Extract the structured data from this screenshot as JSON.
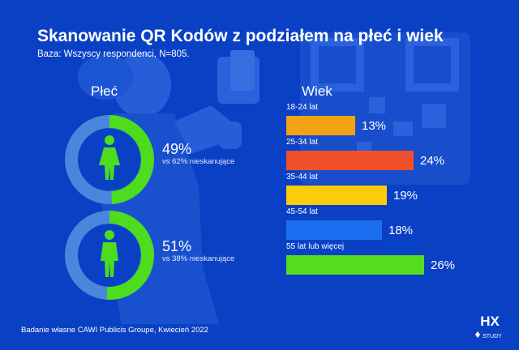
{
  "title": "Skanowanie QR Kodów z podziałem na płeć i wiek",
  "subtitle": "Baza: Wszyscy respondenci, N=805.",
  "gender": {
    "heading": "Płeć",
    "female": {
      "pct_text": "49%",
      "vs_text": "vs 62% nieskanujące",
      "value": 49,
      "icon": "female-icon"
    },
    "male": {
      "pct_text": "51%",
      "vs_text": "vs 38% nieskanujące",
      "value": 51,
      "icon": "male-icon"
    },
    "colors": {
      "fill": "#4ddc1e",
      "track": "#4a86dc"
    }
  },
  "age": {
    "heading": "Wiek",
    "rows": [
      {
        "label": "18-24 lat",
        "value_text": "13%",
        "value": 13,
        "color": "#f2a314"
      },
      {
        "label": "25-34 lat",
        "value_text": "24%",
        "value": 24,
        "color": "#f2502a"
      },
      {
        "label": "35-44 lat",
        "value_text": "19%",
        "value": 19,
        "color": "#fccb0a"
      },
      {
        "label": "45-54 lat",
        "value_text": "18%",
        "value": 18,
        "color": "#1c6ef0"
      },
      {
        "label": "55 lat lub więcej",
        "value_text": "26%",
        "value": 26,
        "color": "#55dc1e"
      }
    ]
  },
  "source": "Badanie własne CAWI Publicis Groupe, Kwiecień 2022",
  "logo": {
    "text": "HX",
    "subtext": "STUDY"
  },
  "chart_data": [
    {
      "type": "pie",
      "labels": [
        "female"
      ],
      "values": [
        49
      ],
      "annotations": [
        "vs 62% nieskanujące"
      ]
    },
    {
      "type": "pie",
      "labels": [
        "male"
      ],
      "values": [
        51
      ],
      "annotations": [
        "vs 38% nieskanujące"
      ]
    },
    {
      "type": "bar",
      "title": "Wiek",
      "categories": [
        "18-24 lat",
        "25-34 lat",
        "35-44 lat",
        "45-54 lat",
        "55 lat lub więcej"
      ],
      "values": [
        13,
        24,
        19,
        18,
        26
      ],
      "orientation": "horizontal"
    }
  ]
}
